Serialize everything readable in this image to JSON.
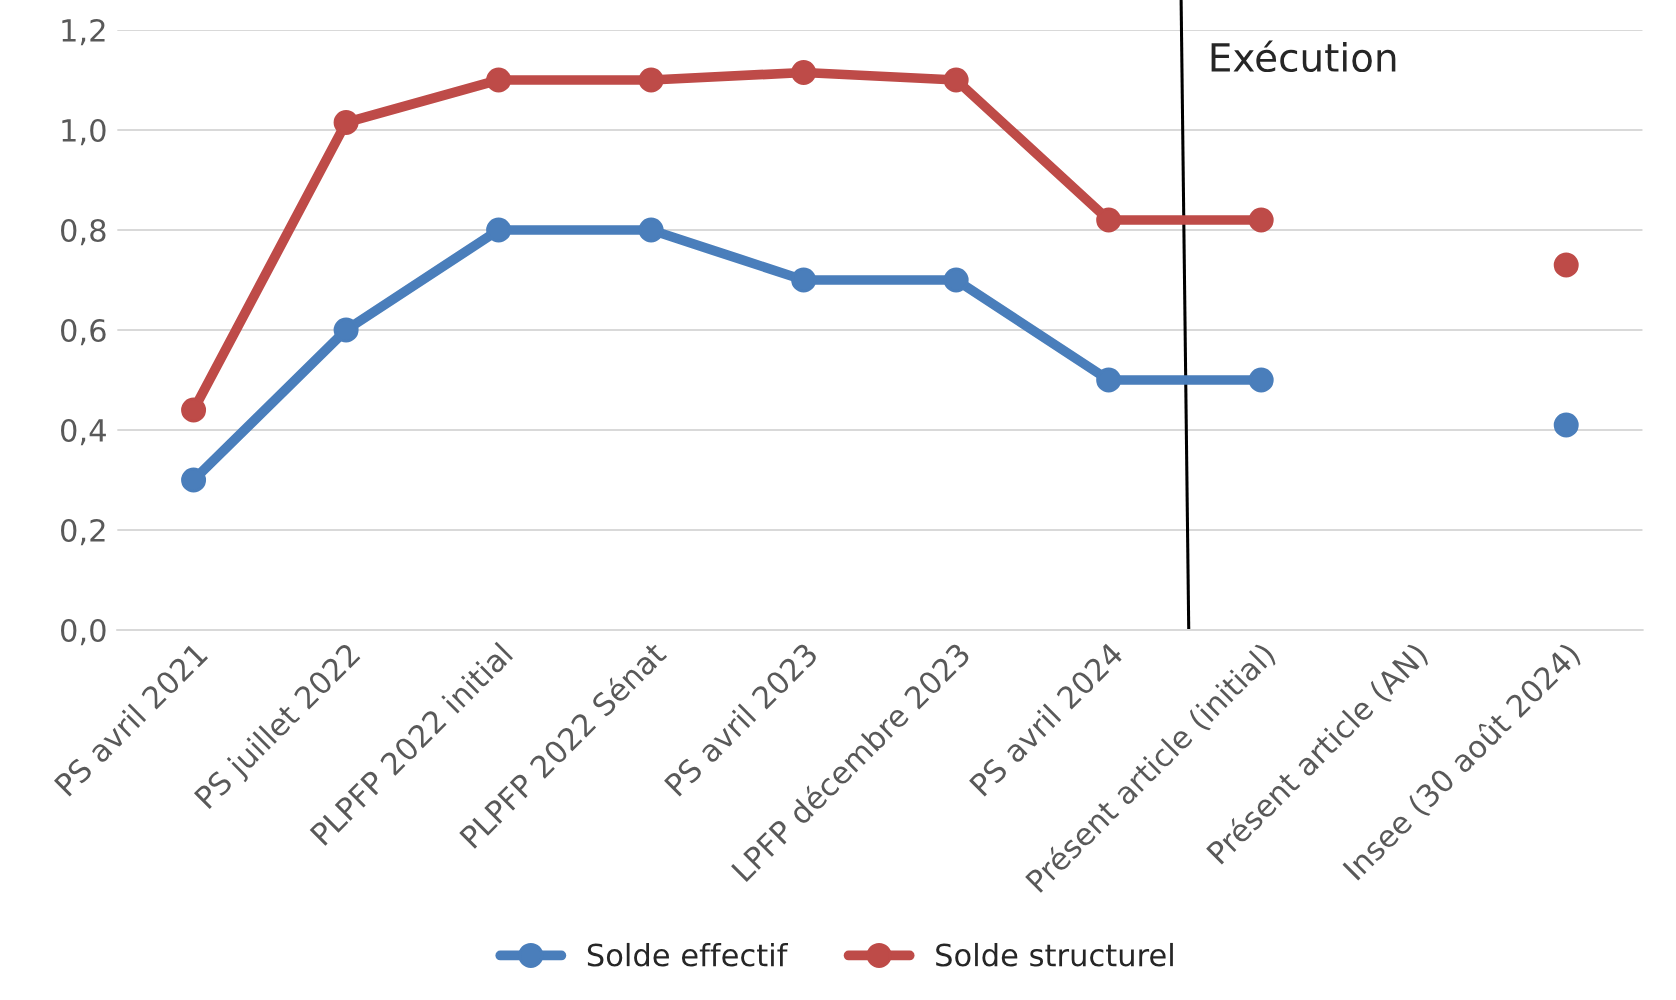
{
  "chart_data": {
    "type": "line",
    "categories": [
      "PS avril 2021",
      "PS juillet 2022",
      "PLPFP 2022 initial",
      "PLPFP 2022 Sénat",
      "PS avril 2023",
      "LPFP décembre 2023",
      "PS avril 2024",
      "Présent article (initial)",
      "Présent article (AN)",
      "Insee (30 août 2024)"
    ],
    "series": [
      {
        "name": "Solde effectif",
        "color": "#4a7ebb",
        "values": [
          0.3,
          0.6,
          0.8,
          0.8,
          0.7,
          0.7,
          0.5,
          0.5,
          null,
          0.41
        ]
      },
      {
        "name": "Solde structurel",
        "color": "#be4b48",
        "values": [
          0.44,
          1.015,
          1.1,
          1.1,
          1.115,
          1.1,
          0.82,
          0.82,
          null,
          0.73
        ]
      }
    ],
    "ylim": [
      0,
      1.2
    ],
    "yticks": [
      {
        "value": 0,
        "label": "0,0"
      },
      {
        "value": 0.2,
        "label": "0,2"
      },
      {
        "value": 0.4,
        "label": "0,4"
      },
      {
        "value": 0.6,
        "label": "0,6"
      },
      {
        "value": 0.8,
        "label": "0,8"
      },
      {
        "value": 1.0,
        "label": "1,0"
      },
      {
        "value": 1.2,
        "label": "1,2"
      }
    ],
    "annotations": [
      "Exécution"
    ],
    "grid": "y",
    "legend": "bottom",
    "marker": "circle",
    "line_style": "solid"
  }
}
